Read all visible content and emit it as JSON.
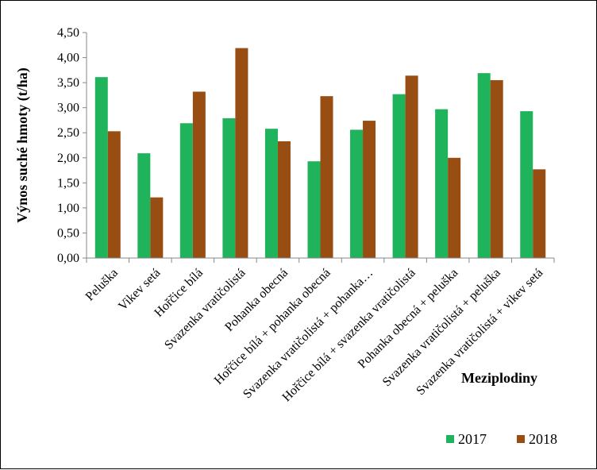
{
  "chart_data": {
    "type": "bar",
    "title": "",
    "xlabel": "Meziplodiny",
    "ylabel": "Výnos suché hmoty (t/ha)",
    "ylim": [
      0,
      4.5
    ],
    "ytick_step": 0.5,
    "ytick_labels": [
      "0,00",
      "0,50",
      "1,00",
      "1,50",
      "2,00",
      "2,50",
      "3,00",
      "3,50",
      "4,00",
      "4,50"
    ],
    "grid": false,
    "legend_position": "bottom-right",
    "categories": [
      "Peluška",
      "Vikev setá",
      "Hořčice bílá",
      "Svazenka vratičolistá",
      "Pohanka obecná",
      "Hořčice bílá + pohanka obecná",
      "Svazenka vratičolistá + pohanka…",
      "Hořčice bílá + svazenka vratičolistá",
      "Pohanka obecná + peluška",
      "Svazenka vratičolistá + peluška",
      "Svazenka vratičolistá + vikev setá"
    ],
    "series": [
      {
        "name": "2017",
        "color": "#1fb35b",
        "values": [
          3.61,
          2.09,
          2.69,
          2.79,
          2.58,
          1.93,
          2.56,
          3.27,
          2.97,
          3.69,
          2.93
        ]
      },
      {
        "name": "2018",
        "color": "#984d12",
        "values": [
          2.53,
          1.21,
          3.32,
          4.19,
          2.33,
          3.23,
          2.74,
          3.64,
          2.0,
          3.55,
          1.77
        ]
      }
    ]
  }
}
